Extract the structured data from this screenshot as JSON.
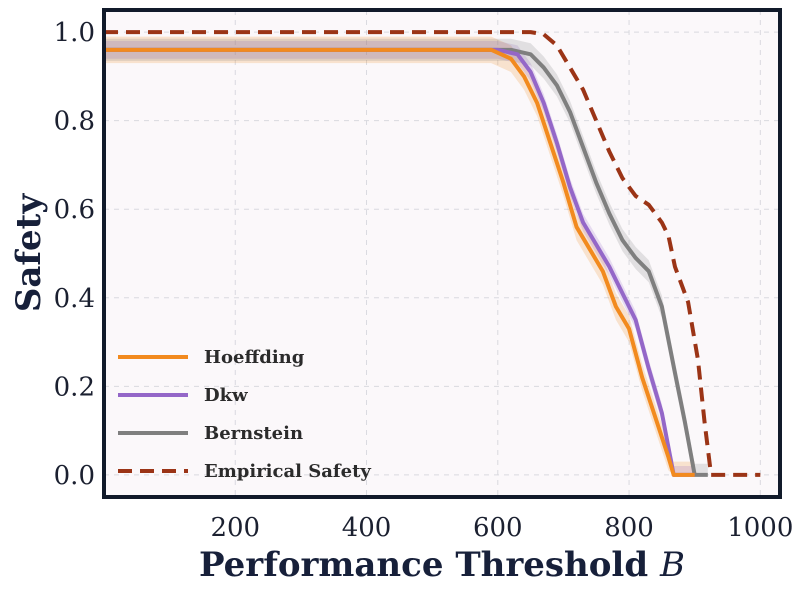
{
  "chart_data": {
    "type": "line",
    "title": "",
    "xlabel": "Performance Threshold",
    "xlabel_var": "B",
    "ylabel": "Safety",
    "xlim": [
      0,
      1030
    ],
    "ylim": [
      -0.05,
      1.05
    ],
    "xticks": [
      200,
      400,
      600,
      800,
      1000
    ],
    "xtick_labels": [
      "200",
      "400",
      "600",
      "800",
      "1000"
    ],
    "yticks": [
      0.0,
      0.2,
      0.4,
      0.6,
      0.8,
      1.0
    ],
    "ytick_labels": [
      "0.0",
      "0.2",
      "0.4",
      "0.6",
      "0.8",
      "1.0"
    ],
    "grid": true,
    "legend_position": "bottom-left",
    "series": [
      {
        "name": "Hoeffding",
        "color": "#f28a1e",
        "style": "solid",
        "band": 0.03,
        "x": [
          0,
          590,
          620,
          640,
          660,
          680,
          700,
          720,
          740,
          760,
          780,
          800,
          820,
          840,
          860,
          868,
          900
        ],
        "y": [
          0.96,
          0.96,
          0.94,
          0.9,
          0.84,
          0.75,
          0.66,
          0.56,
          0.51,
          0.46,
          0.38,
          0.33,
          0.22,
          0.13,
          0.04,
          0.0,
          0.0
        ]
      },
      {
        "name": "Dkw",
        "color": "#9467c8",
        "style": "solid",
        "band": 0.02,
        "x": [
          0,
          600,
          630,
          650,
          670,
          690,
          710,
          730,
          750,
          770,
          790,
          810,
          830,
          850,
          868,
          900
        ],
        "y": [
          0.96,
          0.96,
          0.95,
          0.91,
          0.84,
          0.75,
          0.65,
          0.57,
          0.52,
          0.47,
          0.41,
          0.35,
          0.24,
          0.14,
          0.0,
          0.0
        ]
      },
      {
        "name": "Bernstein",
        "color": "#7f7f7f",
        "style": "solid",
        "band": 0.025,
        "x": [
          0,
          620,
          650,
          670,
          690,
          710,
          730,
          750,
          770,
          790,
          810,
          830,
          850,
          870,
          885,
          900,
          920
        ],
        "y": [
          0.96,
          0.96,
          0.95,
          0.92,
          0.88,
          0.82,
          0.74,
          0.66,
          0.59,
          0.53,
          0.49,
          0.46,
          0.38,
          0.23,
          0.12,
          0.0,
          0.0
        ]
      },
      {
        "name": "Empirical Safety",
        "color": "#9b3416",
        "style": "dashed",
        "band": 0,
        "x": [
          0,
          650,
          670,
          690,
          710,
          730,
          750,
          770,
          790,
          810,
          830,
          850,
          860,
          870,
          890,
          905,
          915,
          925,
          1000
        ],
        "y": [
          1.0,
          1.0,
          0.995,
          0.97,
          0.92,
          0.87,
          0.8,
          0.73,
          0.67,
          0.63,
          0.61,
          0.57,
          0.54,
          0.47,
          0.39,
          0.26,
          0.12,
          0.0,
          0.0
        ]
      }
    ]
  }
}
